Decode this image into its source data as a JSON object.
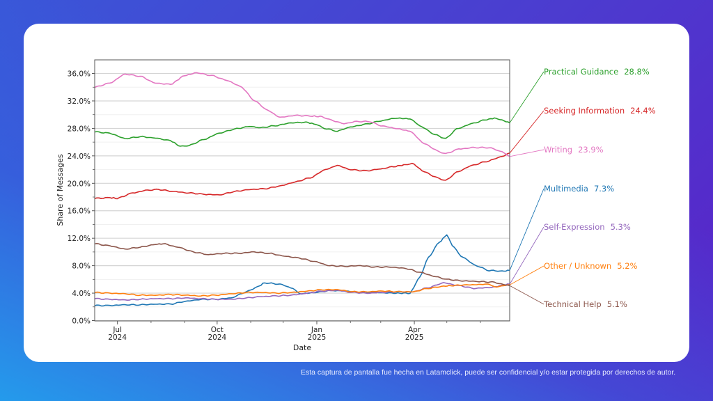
{
  "footer": {
    "text": "Esta captura de pantalla fue hecha en Latamclick, puede ser confidencial y/o estar protegida por derechos de autor."
  },
  "chart_data": {
    "type": "line",
    "title": "",
    "xlabel": "Date",
    "ylabel": "Share of Messages",
    "ylim": [
      0,
      38
    ],
    "xlim": [
      "2024-06-10",
      "2025-06-28"
    ],
    "grid": true,
    "y_ticks": [
      {
        "value": 0,
        "label": "0.0%"
      },
      {
        "value": 4,
        "label": "4.0%"
      },
      {
        "value": 8,
        "label": "8.0%"
      },
      {
        "value": 12,
        "label": "12.0%"
      },
      {
        "value": 16,
        "label": "16.0%"
      },
      {
        "value": 20,
        "label": "20.0%"
      },
      {
        "value": 24,
        "label": "24.0%"
      },
      {
        "value": 28,
        "label": "28.0%"
      },
      {
        "value": 32,
        "label": "32.0%"
      },
      {
        "value": 36,
        "label": "36.0%"
      }
    ],
    "x_ticks_major": [
      {
        "date": "2024-07-01",
        "label_line1": "Jul",
        "label_line2": "2024"
      },
      {
        "date": "2024-10-01",
        "label_line1": "Oct",
        "label_line2": "2024"
      },
      {
        "date": "2025-01-01",
        "label_line1": "Jan",
        "label_line2": "2025"
      },
      {
        "date": "2025-04-01",
        "label_line1": "Apr",
        "label_line2": "2025"
      }
    ],
    "x_ticks_minor": [
      "2024-08-01",
      "2024-09-01",
      "2024-11-01",
      "2024-12-01",
      "2025-02-01",
      "2025-03-01",
      "2025-05-01",
      "2025-06-01"
    ],
    "legend_placement": "right, end-of-line labels",
    "series": [
      {
        "name": "Practical Guidance",
        "final_value": "28.8%",
        "color": "#2ca02c",
        "points": [
          [
            "2024-06-10",
            27.5
          ],
          [
            "2024-06-24",
            27.3
          ],
          [
            "2024-07-08",
            26.5
          ],
          [
            "2024-07-22",
            26.8
          ],
          [
            "2024-08-05",
            26.6
          ],
          [
            "2024-08-19",
            26.2
          ],
          [
            "2024-08-28",
            25.4
          ],
          [
            "2024-09-05",
            25.5
          ],
          [
            "2024-09-19",
            26.4
          ],
          [
            "2024-10-03",
            27.3
          ],
          [
            "2024-10-17",
            27.9
          ],
          [
            "2024-10-31",
            28.3
          ],
          [
            "2024-11-10",
            28.1
          ],
          [
            "2024-11-24",
            28.4
          ],
          [
            "2024-12-08",
            28.8
          ],
          [
            "2024-12-22",
            28.9
          ],
          [
            "2024-12-31",
            28.6
          ],
          [
            "2025-01-08",
            28.0
          ],
          [
            "2025-01-20",
            27.6
          ],
          [
            "2025-02-01",
            28.2
          ],
          [
            "2025-02-15",
            28.6
          ],
          [
            "2025-03-01",
            29.1
          ],
          [
            "2025-03-15",
            29.5
          ],
          [
            "2025-03-28",
            29.4
          ],
          [
            "2025-04-08",
            28.2
          ],
          [
            "2025-04-20",
            27.1
          ],
          [
            "2025-04-30",
            26.5
          ],
          [
            "2025-05-10",
            27.9
          ],
          [
            "2025-05-24",
            28.7
          ],
          [
            "2025-06-07",
            29.3
          ],
          [
            "2025-06-14",
            29.5
          ],
          [
            "2025-06-21",
            29.2
          ],
          [
            "2025-06-28",
            28.8
          ]
        ]
      },
      {
        "name": "Seeking Information",
        "final_value": "24.4%",
        "color": "#d62728",
        "points": [
          [
            "2024-06-10",
            17.8
          ],
          [
            "2024-06-24",
            17.9
          ],
          [
            "2024-07-01",
            17.8
          ],
          [
            "2024-07-15",
            18.6
          ],
          [
            "2024-07-29",
            19.0
          ],
          [
            "2024-08-08",
            19.1
          ],
          [
            "2024-08-22",
            18.8
          ],
          [
            "2024-09-05",
            18.6
          ],
          [
            "2024-09-19",
            18.4
          ],
          [
            "2024-10-03",
            18.3
          ],
          [
            "2024-10-17",
            18.8
          ],
          [
            "2024-10-31",
            19.1
          ],
          [
            "2024-11-14",
            19.2
          ],
          [
            "2024-11-28",
            19.6
          ],
          [
            "2024-12-12",
            20.2
          ],
          [
            "2024-12-26",
            20.8
          ],
          [
            "2025-01-09",
            22.0
          ],
          [
            "2025-01-20",
            22.6
          ],
          [
            "2025-02-01",
            22.0
          ],
          [
            "2025-02-15",
            21.8
          ],
          [
            "2025-03-01",
            22.1
          ],
          [
            "2025-03-15",
            22.5
          ],
          [
            "2025-03-24",
            22.7
          ],
          [
            "2025-03-30",
            22.9
          ],
          [
            "2025-04-10",
            21.7
          ],
          [
            "2025-04-22",
            20.8
          ],
          [
            "2025-04-30",
            20.4
          ],
          [
            "2025-05-10",
            21.6
          ],
          [
            "2025-05-24",
            22.6
          ],
          [
            "2025-06-07",
            23.2
          ],
          [
            "2025-06-21",
            23.9
          ],
          [
            "2025-06-28",
            24.4
          ]
        ]
      },
      {
        "name": "Writing",
        "final_value": "23.9%",
        "color": "#e377c2",
        "points": [
          [
            "2024-06-10",
            34.0
          ],
          [
            "2024-06-24",
            34.6
          ],
          [
            "2024-07-08",
            35.9
          ],
          [
            "2024-07-22",
            35.6
          ],
          [
            "2024-08-05",
            34.6
          ],
          [
            "2024-08-19",
            34.4
          ],
          [
            "2024-09-01",
            35.7
          ],
          [
            "2024-09-12",
            36.1
          ],
          [
            "2024-09-26",
            35.7
          ],
          [
            "2024-10-10",
            35.0
          ],
          [
            "2024-10-24",
            34.0
          ],
          [
            "2024-11-03",
            32.2
          ],
          [
            "2024-11-17",
            30.6
          ],
          [
            "2024-11-28",
            29.6
          ],
          [
            "2024-12-12",
            29.9
          ],
          [
            "2024-12-26",
            29.8
          ],
          [
            "2025-01-06",
            29.7
          ],
          [
            "2025-01-14",
            29.2
          ],
          [
            "2025-01-26",
            28.7
          ],
          [
            "2025-02-07",
            29.0
          ],
          [
            "2025-02-19",
            29.0
          ],
          [
            "2025-03-01",
            28.4
          ],
          [
            "2025-03-15",
            28.0
          ],
          [
            "2025-03-28",
            27.6
          ],
          [
            "2025-04-10",
            25.8
          ],
          [
            "2025-04-24",
            24.6
          ],
          [
            "2025-04-30",
            24.3
          ],
          [
            "2025-05-12",
            25.0
          ],
          [
            "2025-05-26",
            25.2
          ],
          [
            "2025-06-09",
            25.2
          ],
          [
            "2025-06-21",
            24.6
          ],
          [
            "2025-06-28",
            23.9
          ]
        ]
      },
      {
        "name": "Multimedia",
        "final_value": "7.3%",
        "color": "#1f77b4",
        "points": [
          [
            "2024-06-10",
            2.2
          ],
          [
            "2024-06-24",
            2.2
          ],
          [
            "2024-07-08",
            2.3
          ],
          [
            "2024-07-22",
            2.3
          ],
          [
            "2024-08-05",
            2.4
          ],
          [
            "2024-08-19",
            2.4
          ],
          [
            "2024-09-02",
            2.8
          ],
          [
            "2024-09-16",
            3.1
          ],
          [
            "2024-09-30",
            3.1
          ],
          [
            "2024-10-14",
            3.3
          ],
          [
            "2024-10-28",
            4.2
          ],
          [
            "2024-11-07",
            4.9
          ],
          [
            "2024-11-14",
            5.5
          ],
          [
            "2024-11-28",
            5.3
          ],
          [
            "2024-12-10",
            4.7
          ],
          [
            "2024-12-16",
            3.9
          ],
          [
            "2024-12-31",
            4.1
          ],
          [
            "2025-01-14",
            4.4
          ],
          [
            "2025-01-28",
            4.3
          ],
          [
            "2025-02-11",
            4.1
          ],
          [
            "2025-02-25",
            4.1
          ],
          [
            "2025-03-11",
            4.0
          ],
          [
            "2025-03-28",
            4.0
          ],
          [
            "2025-04-06",
            6.3
          ],
          [
            "2025-04-14",
            9.2
          ],
          [
            "2025-04-24",
            11.4
          ],
          [
            "2025-05-01",
            12.5
          ],
          [
            "2025-05-06",
            11.0
          ],
          [
            "2025-05-14",
            9.4
          ],
          [
            "2025-05-28",
            8.0
          ],
          [
            "2025-06-09",
            7.3
          ],
          [
            "2025-06-21",
            7.2
          ],
          [
            "2025-06-28",
            7.3
          ]
        ]
      },
      {
        "name": "Self-Expression",
        "final_value": "5.3%",
        "color": "#9467bd",
        "points": [
          [
            "2024-06-10",
            3.2
          ],
          [
            "2024-06-24",
            3.1
          ],
          [
            "2024-07-08",
            3.0
          ],
          [
            "2024-07-22",
            3.1
          ],
          [
            "2024-08-05",
            3.2
          ],
          [
            "2024-08-19",
            3.2
          ],
          [
            "2024-09-02",
            3.3
          ],
          [
            "2024-09-16",
            3.2
          ],
          [
            "2024-09-30",
            3.1
          ],
          [
            "2024-10-14",
            3.1
          ],
          [
            "2024-10-28",
            3.3
          ],
          [
            "2024-11-11",
            3.5
          ],
          [
            "2024-11-25",
            3.6
          ],
          [
            "2024-12-09",
            3.7
          ],
          [
            "2024-12-23",
            4.0
          ],
          [
            "2025-01-06",
            4.3
          ],
          [
            "2025-01-20",
            4.4
          ],
          [
            "2025-02-03",
            4.1
          ],
          [
            "2025-02-17",
            4.0
          ],
          [
            "2025-03-03",
            4.1
          ],
          [
            "2025-03-17",
            4.2
          ],
          [
            "2025-03-31",
            4.2
          ],
          [
            "2025-04-14",
            4.8
          ],
          [
            "2025-04-28",
            5.5
          ],
          [
            "2025-05-12",
            5.1
          ],
          [
            "2025-05-26",
            4.7
          ],
          [
            "2025-06-09",
            4.8
          ],
          [
            "2025-06-28",
            5.3
          ]
        ]
      },
      {
        "name": "Other / Unknown",
        "final_value": "5.2%",
        "color": "#ff7f0e",
        "points": [
          [
            "2024-06-10",
            4.1
          ],
          [
            "2024-06-24",
            4.0
          ],
          [
            "2024-07-08",
            3.9
          ],
          [
            "2024-07-22",
            3.7
          ],
          [
            "2024-08-05",
            3.7
          ],
          [
            "2024-08-19",
            3.8
          ],
          [
            "2024-09-02",
            3.7
          ],
          [
            "2024-09-16",
            3.6
          ],
          [
            "2024-09-30",
            3.7
          ],
          [
            "2024-10-14",
            3.9
          ],
          [
            "2024-10-28",
            4.1
          ],
          [
            "2024-11-11",
            4.1
          ],
          [
            "2024-11-25",
            4.0
          ],
          [
            "2024-12-09",
            4.1
          ],
          [
            "2024-12-23",
            4.3
          ],
          [
            "2025-01-06",
            4.5
          ],
          [
            "2025-01-20",
            4.5
          ],
          [
            "2025-02-03",
            4.2
          ],
          [
            "2025-02-17",
            4.2
          ],
          [
            "2025-03-03",
            4.3
          ],
          [
            "2025-03-17",
            4.2
          ],
          [
            "2025-03-31",
            4.2
          ],
          [
            "2025-04-14",
            4.7
          ],
          [
            "2025-04-28",
            5.0
          ],
          [
            "2025-05-05",
            5.1
          ],
          [
            "2025-05-19",
            5.2
          ],
          [
            "2025-06-09",
            5.3
          ],
          [
            "2025-06-14",
            4.9
          ],
          [
            "2025-06-28",
            5.2
          ]
        ]
      },
      {
        "name": "Technical Help",
        "final_value": "5.1%",
        "color": "#8c564b",
        "points": [
          [
            "2024-06-10",
            11.2
          ],
          [
            "2024-06-24",
            10.9
          ],
          [
            "2024-07-08",
            10.4
          ],
          [
            "2024-07-22",
            10.7
          ],
          [
            "2024-08-05",
            11.1
          ],
          [
            "2024-08-12",
            11.2
          ],
          [
            "2024-08-26",
            10.7
          ],
          [
            "2024-09-09",
            10.0
          ],
          [
            "2024-09-23",
            9.6
          ],
          [
            "2024-10-07",
            9.8
          ],
          [
            "2024-10-21",
            9.8
          ],
          [
            "2024-11-04",
            10.0
          ],
          [
            "2024-11-18",
            9.8
          ],
          [
            "2024-12-02",
            9.4
          ],
          [
            "2024-12-16",
            9.1
          ],
          [
            "2024-12-30",
            8.6
          ],
          [
            "2025-01-13",
            8.0
          ],
          [
            "2025-01-27",
            7.9
          ],
          [
            "2025-02-10",
            8.0
          ],
          [
            "2025-02-24",
            7.8
          ],
          [
            "2025-03-10",
            7.8
          ],
          [
            "2025-03-24",
            7.6
          ],
          [
            "2025-04-07",
            7.0
          ],
          [
            "2025-04-21",
            6.4
          ],
          [
            "2025-05-01",
            6.0
          ],
          [
            "2025-05-15",
            5.8
          ],
          [
            "2025-05-29",
            5.7
          ],
          [
            "2025-06-12",
            5.6
          ],
          [
            "2025-06-28",
            5.1
          ]
        ]
      }
    ]
  }
}
